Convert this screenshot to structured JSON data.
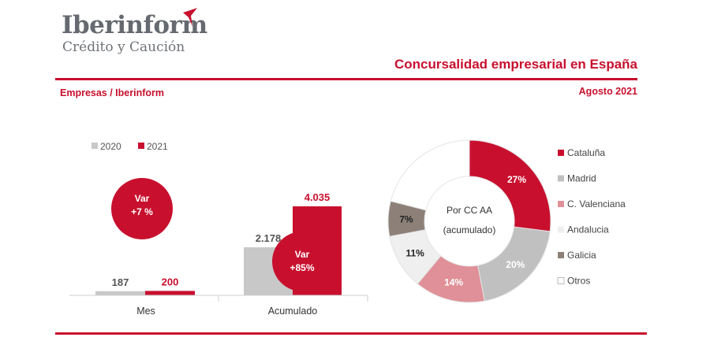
{
  "header": {
    "brand": "Iberinform",
    "brand_sub": "Crédito y Caución",
    "title": "Concursalidad empresarial en España",
    "left_label": "Empresas / Iberinform",
    "right_label": "Agosto 2021"
  },
  "colors": {
    "accent": "#c8102e",
    "series_2020": "#c8c8c8",
    "series_2021": "#c8102e",
    "slices": [
      "#c8102e",
      "#c0c0c0",
      "#e09098",
      "#efefef",
      "#8c8078",
      "#ffffff"
    ]
  },
  "chart_data": [
    {
      "type": "bar",
      "legend": [
        "2020",
        "2021"
      ],
      "categories": [
        "Mes",
        "Acumulado"
      ],
      "series": [
        {
          "name": "2020",
          "values": [
            187,
            2178
          ],
          "labels": [
            "187",
            "2.178"
          ]
        },
        {
          "name": "2021",
          "values": [
            200,
            4035
          ],
          "labels": [
            "200",
            "4.035"
          ]
        }
      ],
      "annotations": [
        {
          "category": "Mes",
          "line1": "Var",
          "line2": "+7 %"
        },
        {
          "category": "Acumulado",
          "line1": "Var",
          "line2": "+85%"
        }
      ],
      "ylim": [
        0,
        4035
      ]
    },
    {
      "type": "pie",
      "center_label": [
        "Por CC AA",
        "(acumulado)"
      ],
      "labels": [
        "Cataluña",
        "Madrid",
        "C. Valenciana",
        "Andalucia",
        "Galicia",
        "Otros"
      ],
      "values": [
        27,
        20,
        14,
        11,
        7,
        21
      ],
      "value_labels": [
        "27%",
        "20%",
        "14%",
        "11%",
        "7%",
        ""
      ]
    }
  ]
}
